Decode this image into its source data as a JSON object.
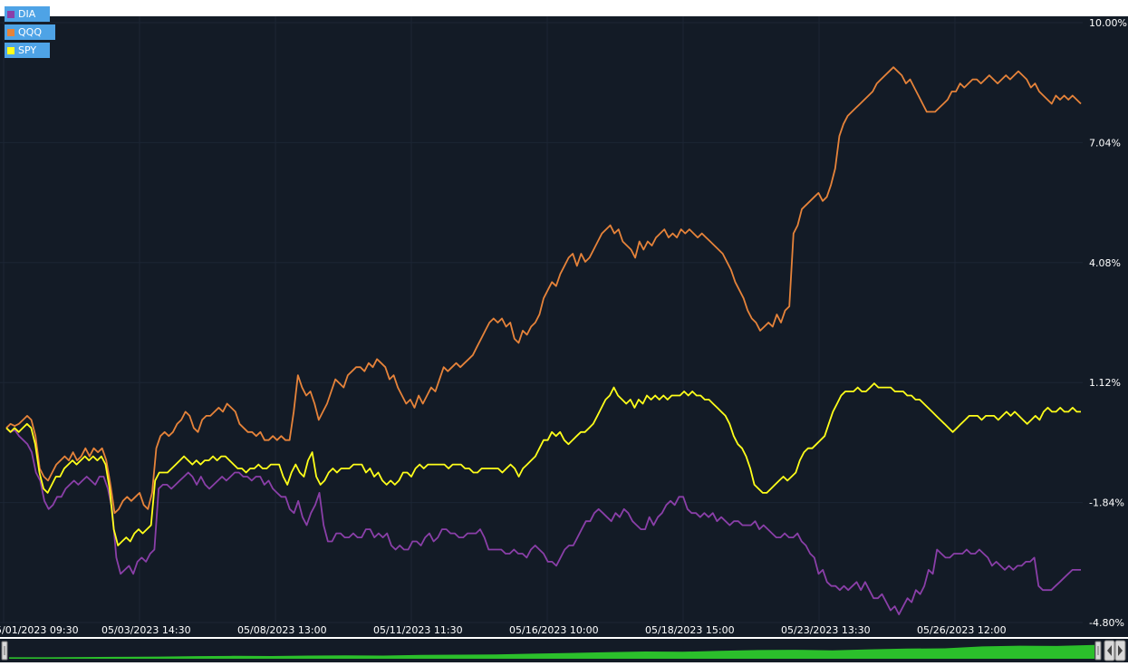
{
  "chart_data": {
    "type": "line",
    "x_ticks": [
      "05/01/2023 09:30",
      "05/03/2023 14:30",
      "05/08/2023 13:00",
      "05/11/2023 11:30",
      "05/16/2023 10:00",
      "05/18/2023 15:00",
      "05/23/2023 13:30",
      "05/26/2023 12:00"
    ],
    "y_ticks": [
      "10.00%",
      "7.04%",
      "4.08%",
      "1.12%",
      "-1.84%",
      "-4.80%"
    ],
    "ylim": [
      -4.8,
      10.0
    ],
    "y_unit": "%",
    "legend_position": "top-left",
    "grid": true,
    "colors": {
      "background": "#131b26",
      "grid": "#1c2634",
      "text": "#ffffff",
      "legend_bg": "#4ea3e6",
      "navigator": "#2bbf2b"
    },
    "series": [
      {
        "name": "DIA",
        "color": "#8a3fa8",
        "values": [
          0.0,
          -0.1,
          -0.05,
          -0.2,
          -0.3,
          -0.4,
          -0.6,
          -1.1,
          -1.3,
          -1.8,
          -2.0,
          -1.9,
          -1.7,
          -1.7,
          -1.5,
          -1.4,
          -1.3,
          -1.4,
          -1.3,
          -1.2,
          -1.3,
          -1.4,
          -1.2,
          -1.2,
          -1.5,
          -2.0,
          -3.2,
          -3.6,
          -3.5,
          -3.4,
          -3.6,
          -3.3,
          -3.2,
          -3.3,
          -3.1,
          -3.0,
          -1.5,
          -1.4,
          -1.4,
          -1.5,
          -1.4,
          -1.3,
          -1.2,
          -1.1,
          -1.2,
          -1.4,
          -1.2,
          -1.4,
          -1.5,
          -1.4,
          -1.3,
          -1.2,
          -1.3,
          -1.2,
          -1.1,
          -1.1,
          -1.2,
          -1.2,
          -1.3,
          -1.2,
          -1.2,
          -1.4,
          -1.3,
          -1.5,
          -1.6,
          -1.7,
          -1.7,
          -2.0,
          -2.1,
          -1.8,
          -2.2,
          -2.4,
          -2.1,
          -1.9,
          -1.6,
          -2.4,
          -2.8,
          -2.8,
          -2.6,
          -2.6,
          -2.7,
          -2.7,
          -2.6,
          -2.7,
          -2.7,
          -2.5,
          -2.5,
          -2.7,
          -2.6,
          -2.7,
          -2.6,
          -2.9,
          -3.0,
          -2.9,
          -3.0,
          -3.0,
          -2.8,
          -2.8,
          -2.9,
          -2.7,
          -2.6,
          -2.8,
          -2.7,
          -2.5,
          -2.5,
          -2.6,
          -2.6,
          -2.7,
          -2.7,
          -2.6,
          -2.6,
          -2.6,
          -2.5,
          -2.7,
          -3.0,
          -3.0,
          -3.0,
          -3.0,
          -3.1,
          -3.1,
          -3.0,
          -3.1,
          -3.1,
          -3.2,
          -3.0,
          -2.9,
          -3.0,
          -3.1,
          -3.3,
          -3.3,
          -3.4,
          -3.2,
          -3.0,
          -2.9,
          -2.9,
          -2.7,
          -2.5,
          -2.3,
          -2.3,
          -2.1,
          -2.0,
          -2.1,
          -2.2,
          -2.3,
          -2.1,
          -2.2,
          -2.0,
          -2.1,
          -2.3,
          -2.4,
          -2.5,
          -2.5,
          -2.2,
          -2.4,
          -2.2,
          -2.1,
          -1.9,
          -1.8,
          -1.9,
          -1.7,
          -1.7,
          -2.0,
          -2.1,
          -2.1,
          -2.2,
          -2.1,
          -2.2,
          -2.1,
          -2.3,
          -2.2,
          -2.3,
          -2.4,
          -2.3,
          -2.3,
          -2.4,
          -2.4,
          -2.4,
          -2.3,
          -2.5,
          -2.4,
          -2.5,
          -2.6,
          -2.7,
          -2.7,
          -2.6,
          -2.7,
          -2.7,
          -2.6,
          -2.8,
          -2.9,
          -3.1,
          -3.2,
          -3.6,
          -3.5,
          -3.8,
          -3.9,
          -3.9,
          -4.0,
          -3.9,
          -4.0,
          -3.9,
          -3.8,
          -4.0,
          -3.8,
          -4.0,
          -4.2,
          -4.2,
          -4.1,
          -4.3,
          -4.5,
          -4.4,
          -4.6,
          -4.4,
          -4.2,
          -4.3,
          -4.0,
          -4.1,
          -3.9,
          -3.5,
          -3.6,
          -3.0,
          -3.1,
          -3.2,
          -3.2,
          -3.1,
          -3.1,
          -3.1,
          -3.0,
          -3.1,
          -3.1,
          -3.0,
          -3.1,
          -3.2,
          -3.4,
          -3.3,
          -3.4,
          -3.5,
          -3.4,
          -3.5,
          -3.4,
          -3.4,
          -3.3,
          -3.3,
          -3.2,
          -3.9,
          -4.0,
          -4.0,
          -4.0,
          -3.9,
          -3.8,
          -3.7,
          -3.6,
          -3.5,
          -3.5,
          -3.5
        ]
      },
      {
        "name": "QQQ",
        "color": "#e6833a",
        "values": [
          0.0,
          0.1,
          0.05,
          0.1,
          0.2,
          0.3,
          0.2,
          -0.2,
          -1.0,
          -1.2,
          -1.3,
          -1.1,
          -0.9,
          -0.8,
          -0.7,
          -0.8,
          -0.6,
          -0.8,
          -0.7,
          -0.5,
          -0.7,
          -0.5,
          -0.6,
          -0.5,
          -0.8,
          -1.4,
          -2.1,
          -2.0,
          -1.8,
          -1.7,
          -1.8,
          -1.7,
          -1.6,
          -1.9,
          -2.0,
          -1.6,
          -0.5,
          -0.2,
          -0.1,
          -0.2,
          -0.1,
          0.1,
          0.2,
          0.4,
          0.3,
          0.0,
          -0.1,
          0.2,
          0.3,
          0.3,
          0.4,
          0.5,
          0.4,
          0.6,
          0.5,
          0.4,
          0.1,
          0.0,
          -0.1,
          -0.1,
          -0.2,
          -0.1,
          -0.3,
          -0.3,
          -0.2,
          -0.3,
          -0.2,
          -0.3,
          -0.3,
          0.4,
          1.3,
          1.0,
          0.8,
          0.9,
          0.6,
          0.2,
          0.4,
          0.6,
          0.9,
          1.2,
          1.1,
          1.0,
          1.3,
          1.4,
          1.5,
          1.5,
          1.4,
          1.6,
          1.5,
          1.7,
          1.6,
          1.5,
          1.2,
          1.3,
          1.0,
          0.8,
          0.6,
          0.7,
          0.5,
          0.8,
          0.6,
          0.8,
          1.0,
          0.9,
          1.2,
          1.5,
          1.4,
          1.5,
          1.6,
          1.5,
          1.6,
          1.7,
          1.8,
          2.0,
          2.2,
          2.4,
          2.6,
          2.7,
          2.6,
          2.7,
          2.5,
          2.6,
          2.2,
          2.1,
          2.4,
          2.3,
          2.5,
          2.6,
          2.8,
          3.2,
          3.4,
          3.6,
          3.5,
          3.8,
          4.0,
          4.2,
          4.3,
          4.0,
          4.3,
          4.1,
          4.2,
          4.4,
          4.6,
          4.8,
          4.9,
          5.0,
          4.8,
          4.9,
          4.6,
          4.5,
          4.4,
          4.2,
          4.6,
          4.4,
          4.6,
          4.5,
          4.7,
          4.8,
          4.9,
          4.7,
          4.8,
          4.7,
          4.9,
          4.8,
          4.9,
          4.8,
          4.7,
          4.8,
          4.7,
          4.6,
          4.5,
          4.4,
          4.3,
          4.1,
          3.9,
          3.6,
          3.4,
          3.2,
          2.9,
          2.7,
          2.6,
          2.4,
          2.5,
          2.6,
          2.5,
          2.8,
          2.6,
          2.9,
          3.0,
          4.8,
          5.0,
          5.4,
          5.5,
          5.6,
          5.7,
          5.8,
          5.6,
          5.7,
          6.0,
          6.4,
          7.2,
          7.5,
          7.7,
          7.8,
          7.9,
          8.0,
          8.1,
          8.2,
          8.3,
          8.5,
          8.6,
          8.7,
          8.8,
          8.9,
          8.8,
          8.7,
          8.5,
          8.6,
          8.4,
          8.2,
          8.0,
          7.8,
          7.8,
          7.8,
          7.9,
          8.0,
          8.1,
          8.3,
          8.3,
          8.5,
          8.4,
          8.5,
          8.6,
          8.6,
          8.5,
          8.6,
          8.7,
          8.6,
          8.5,
          8.6,
          8.7,
          8.6,
          8.7,
          8.8,
          8.7,
          8.6,
          8.4,
          8.5,
          8.3,
          8.2,
          8.1,
          8.0,
          8.2,
          8.1,
          8.2,
          8.1,
          8.2,
          8.1,
          8.0
        ]
      },
      {
        "name": "SPY",
        "color": "#ffff1a",
        "values": [
          0.0,
          -0.1,
          0.0,
          -0.1,
          0.0,
          0.1,
          0.0,
          -0.4,
          -1.1,
          -1.5,
          -1.6,
          -1.4,
          -1.2,
          -1.2,
          -1.0,
          -0.9,
          -0.8,
          -0.9,
          -0.8,
          -0.7,
          -0.8,
          -0.7,
          -0.8,
          -0.7,
          -0.9,
          -1.5,
          -2.5,
          -2.9,
          -2.8,
          -2.7,
          -2.8,
          -2.6,
          -2.5,
          -2.6,
          -2.5,
          -2.4,
          -1.3,
          -1.1,
          -1.1,
          -1.1,
          -1.0,
          -0.9,
          -0.8,
          -0.7,
          -0.8,
          -0.9,
          -0.8,
          -0.9,
          -0.8,
          -0.8,
          -0.7,
          -0.8,
          -0.7,
          -0.7,
          -0.8,
          -0.9,
          -1.0,
          -1.0,
          -1.1,
          -1.0,
          -1.0,
          -0.9,
          -1.0,
          -1.0,
          -0.9,
          -0.9,
          -0.9,
          -1.2,
          -1.4,
          -1.1,
          -0.9,
          -1.1,
          -1.2,
          -0.8,
          -0.6,
          -1.2,
          -1.4,
          -1.3,
          -1.1,
          -1.0,
          -1.1,
          -1.0,
          -1.0,
          -1.0,
          -0.9,
          -0.9,
          -0.9,
          -1.1,
          -1.0,
          -1.2,
          -1.1,
          -1.3,
          -1.4,
          -1.3,
          -1.4,
          -1.3,
          -1.1,
          -1.1,
          -1.2,
          -1.0,
          -0.9,
          -1.0,
          -0.9,
          -0.9,
          -0.9,
          -0.9,
          -0.9,
          -1.0,
          -0.9,
          -0.9,
          -0.9,
          -1.0,
          -1.0,
          -1.1,
          -1.1,
          -1.0,
          -1.0,
          -1.0,
          -1.0,
          -1.0,
          -1.1,
          -1.0,
          -0.9,
          -1.0,
          -1.2,
          -1.0,
          -0.9,
          -0.8,
          -0.7,
          -0.5,
          -0.3,
          -0.3,
          -0.1,
          -0.2,
          -0.1,
          -0.3,
          -0.4,
          -0.3,
          -0.2,
          -0.1,
          -0.1,
          0.0,
          0.1,
          0.3,
          0.5,
          0.7,
          0.8,
          1.0,
          0.8,
          0.7,
          0.6,
          0.7,
          0.5,
          0.7,
          0.6,
          0.8,
          0.7,
          0.8,
          0.7,
          0.8,
          0.7,
          0.8,
          0.8,
          0.8,
          0.9,
          0.8,
          0.9,
          0.8,
          0.8,
          0.7,
          0.7,
          0.6,
          0.5,
          0.4,
          0.3,
          0.1,
          -0.2,
          -0.4,
          -0.5,
          -0.7,
          -1.0,
          -1.4,
          -1.5,
          -1.6,
          -1.6,
          -1.5,
          -1.4,
          -1.3,
          -1.2,
          -1.3,
          -1.2,
          -1.1,
          -0.8,
          -0.6,
          -0.5,
          -0.5,
          -0.4,
          -0.3,
          -0.2,
          0.1,
          0.4,
          0.6,
          0.8,
          0.9,
          0.9,
          0.9,
          1.0,
          0.9,
          0.9,
          1.0,
          1.1,
          1.0,
          1.0,
          1.0,
          1.0,
          0.9,
          0.9,
          0.9,
          0.8,
          0.8,
          0.7,
          0.7,
          0.6,
          0.5,
          0.4,
          0.3,
          0.2,
          0.1,
          0.0,
          -0.1,
          0.0,
          0.1,
          0.2,
          0.3,
          0.3,
          0.3,
          0.2,
          0.3,
          0.3,
          0.3,
          0.2,
          0.3,
          0.4,
          0.3,
          0.4,
          0.3,
          0.2,
          0.1,
          0.2,
          0.3,
          0.2,
          0.4,
          0.5,
          0.4,
          0.4,
          0.5,
          0.4,
          0.4,
          0.5,
          0.4,
          0.4
        ]
      }
    ],
    "navigator_levels": [
      0.1,
      0.1,
      0.12,
      0.13,
      0.15,
      0.18,
      0.2,
      0.19,
      0.22,
      0.24,
      0.22,
      0.26,
      0.28,
      0.3,
      0.35,
      0.4,
      0.45,
      0.5,
      0.48,
      0.55,
      0.6,
      0.62,
      0.58,
      0.65,
      0.7,
      0.72,
      0.85,
      0.9,
      0.88,
      0.95
    ]
  }
}
